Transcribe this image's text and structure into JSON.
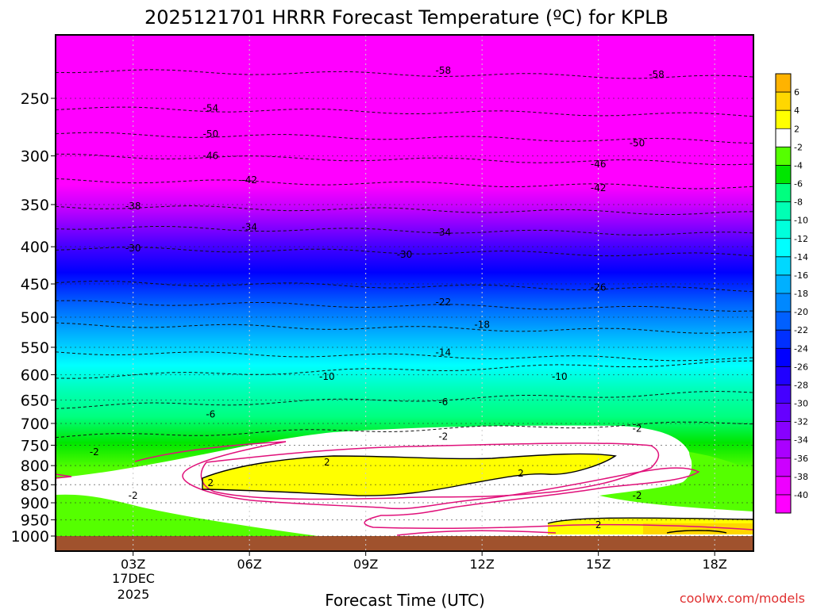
{
  "chart_data": {
    "type": "heatmap",
    "title": "2025121701 HRRR Forecast Temperature (ºC) for KPLB",
    "xlabel": "Forecast Time (UTC)",
    "credit": "coolwx.com/models",
    "x_ticks": [
      {
        "label": "03Z",
        "hour": 3
      },
      {
        "label": "06Z",
        "hour": 6
      },
      {
        "label": "09Z",
        "hour": 9
      },
      {
        "label": "12Z",
        "hour": 12
      },
      {
        "label": "15Z",
        "hour": 15
      },
      {
        "label": "18Z",
        "hour": 18
      }
    ],
    "x_date_lines": [
      "17DEC",
      "2025"
    ],
    "x_range": [
      1,
      19
    ],
    "y_ticks": [
      "250",
      "300",
      "350",
      "400",
      "450",
      "500",
      "550",
      "600",
      "650",
      "700",
      "750",
      "800",
      "850",
      "900",
      "950",
      "1000"
    ],
    "y_values": [
      250,
      300,
      350,
      400,
      450,
      500,
      550,
      600,
      650,
      700,
      750,
      800,
      850,
      900,
      950,
      1000
    ],
    "y_range": [
      200,
      1020
    ],
    "y_unit": "hPa",
    "colorbar": {
      "levels": [
        "6",
        "4",
        "2",
        "-2",
        "-4",
        "-6",
        "-8",
        "-10",
        "-12",
        "-14",
        "-16",
        "-18",
        "-20",
        "-22",
        "-24",
        "-26",
        "-28",
        "-30",
        "-32",
        "-34",
        "-36",
        "-38",
        "-40"
      ],
      "colors": [
        "#ffb300",
        "#ffd700",
        "#ffff00",
        "#ffffff",
        "#55ff00",
        "#00e600",
        "#00ff7f",
        "#00ffb4",
        "#00ffdc",
        "#00ffff",
        "#00d8ff",
        "#00b0ff",
        "#0088ff",
        "#0060ff",
        "#0030ff",
        "#0000ff",
        "#2000ff",
        "#4400ff",
        "#6600ff",
        "#8800ff",
        "#aa00ff",
        "#cc00ff",
        "#ee00ff",
        "#ff00ff"
      ]
    },
    "isotherms": [
      {
        "label": "-58",
        "pressure": 229,
        "label_positions": [
          [
            11,
            229
          ],
          [
            16.5,
            232
          ]
        ]
      },
      {
        "label": "-54",
        "pressure": 258,
        "label_positions": [
          [
            5,
            258
          ]
        ]
      },
      {
        "label": "-50",
        "pressure": 280,
        "label_positions": [
          [
            5,
            280
          ],
          [
            16,
            288
          ]
        ]
      },
      {
        "label": "-46",
        "pressure": 300,
        "label_positions": [
          [
            5,
            300
          ],
          [
            15,
            308
          ]
        ]
      },
      {
        "label": "-42",
        "pressure": 324,
        "label_positions": [
          [
            6,
            324
          ],
          [
            15,
            332
          ]
        ]
      },
      {
        "label": "-38",
        "pressure": 352,
        "label_positions": [
          [
            3,
            352
          ]
        ]
      },
      {
        "label": "-34",
        "pressure": 376,
        "label_positions": [
          [
            6,
            376
          ],
          [
            11,
            382
          ]
        ]
      },
      {
        "label": "-30",
        "pressure": 402,
        "label_positions": [
          [
            3,
            402
          ],
          [
            10,
            410
          ]
        ]
      },
      {
        "label": "-26",
        "pressure": 448,
        "label_positions": [
          [
            15,
            455
          ]
        ]
      },
      {
        "label": "-22",
        "pressure": 477,
        "label_positions": [
          [
            11,
            477
          ]
        ]
      },
      {
        "label": "-18",
        "pressure": 512,
        "label_positions": [
          [
            12,
            512
          ]
        ]
      },
      {
        "label": "-14",
        "pressure": 559,
        "label_positions": [
          [
            11,
            559
          ]
        ]
      },
      {
        "label": "-10",
        "pressure": 604,
        "label_positions": [
          [
            8,
            604
          ],
          [
            14,
            604
          ]
        ]
      },
      {
        "label": "-6",
        "pressure": 664,
        "label_positions": [
          [
            11,
            654
          ],
          [
            5,
            680
          ]
        ]
      },
      {
        "label": "-2",
        "pressure": 730,
        "label_positions": [
          [
            11,
            730
          ],
          [
            2,
            766
          ],
          [
            3,
            880
          ],
          [
            16,
            712
          ],
          [
            16,
            880
          ]
        ]
      },
      {
        "label": "2",
        "pressure": 810,
        "label_positions": [
          [
            8,
            792
          ],
          [
            5,
            845
          ],
          [
            13,
            820
          ],
          [
            15,
            965
          ]
        ]
      }
    ]
  }
}
